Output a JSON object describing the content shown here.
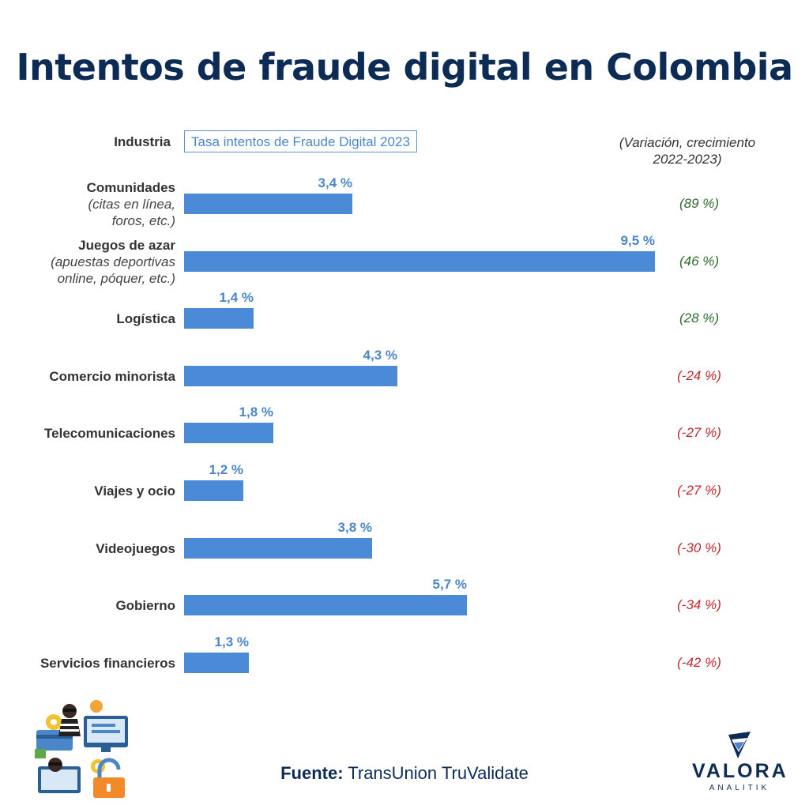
{
  "title": "Intentos de fraude digital en Colombia",
  "header": {
    "industry_label": "Industria",
    "rate_label": "Tasa intentos de Fraude Digital 2023",
    "variation_label_line1": "(Variación, crecimiento",
    "variation_label_line2": "2022-2023)"
  },
  "chart_data": {
    "type": "bar",
    "title": "Intentos de fraude digital en Colombia",
    "xlabel": "Tasa intentos de Fraude Digital 2023",
    "ylabel": "Industria",
    "categories": [
      {
        "name": "Comunidades",
        "sub": [
          "(citas en línea,",
          "foros, etc.)"
        ]
      },
      {
        "name": "Juegos de azar",
        "sub": [
          "(apuestas deportivas",
          "online, póquer, etc.)"
        ]
      },
      {
        "name": "Logística",
        "sub": []
      },
      {
        "name": "Comercio minorista",
        "sub": []
      },
      {
        "name": "Telecomunicaciones",
        "sub": []
      },
      {
        "name": "Viajes y ocio",
        "sub": []
      },
      {
        "name": "Videojuegos",
        "sub": []
      },
      {
        "name": "Gobierno",
        "sub": []
      },
      {
        "name": "Servicios financieros",
        "sub": []
      }
    ],
    "values": [
      3.4,
      9.5,
      1.4,
      4.3,
      1.8,
      1.2,
      3.8,
      5.7,
      1.3
    ],
    "value_labels": [
      "3,4 %",
      "9,5 %",
      "1,4 %",
      "4,3 %",
      "1,8 %",
      "1,2 %",
      "3,8 %",
      "5,7 %",
      "1,3 %"
    ],
    "variation_labels": [
      "(89 %)",
      "(46 %)",
      "(28 %)",
      "(-24 %)",
      "(-27 %)",
      "(-27 %)",
      "(-30 %)",
      "(-34 %)",
      "(-42 %)"
    ],
    "variation_values": [
      89,
      46,
      28,
      -24,
      -27,
      -27,
      -30,
      -34,
      -42
    ],
    "xlim": [
      0,
      9.5
    ],
    "colors": {
      "bar": "#4a8ad6",
      "value_label": "#4a86c8",
      "positive": "#2e6b2e",
      "negative": "#c0282d"
    },
    "orientation": "horizontal",
    "grid": false
  },
  "footer": {
    "source_label": "Fuente:",
    "source_value": "TransUnion TruValidate"
  },
  "logo": {
    "name": "VALORA",
    "sub": "ANALITIK"
  },
  "illustration": {
    "icon": "cyber-fraud-illustration"
  }
}
